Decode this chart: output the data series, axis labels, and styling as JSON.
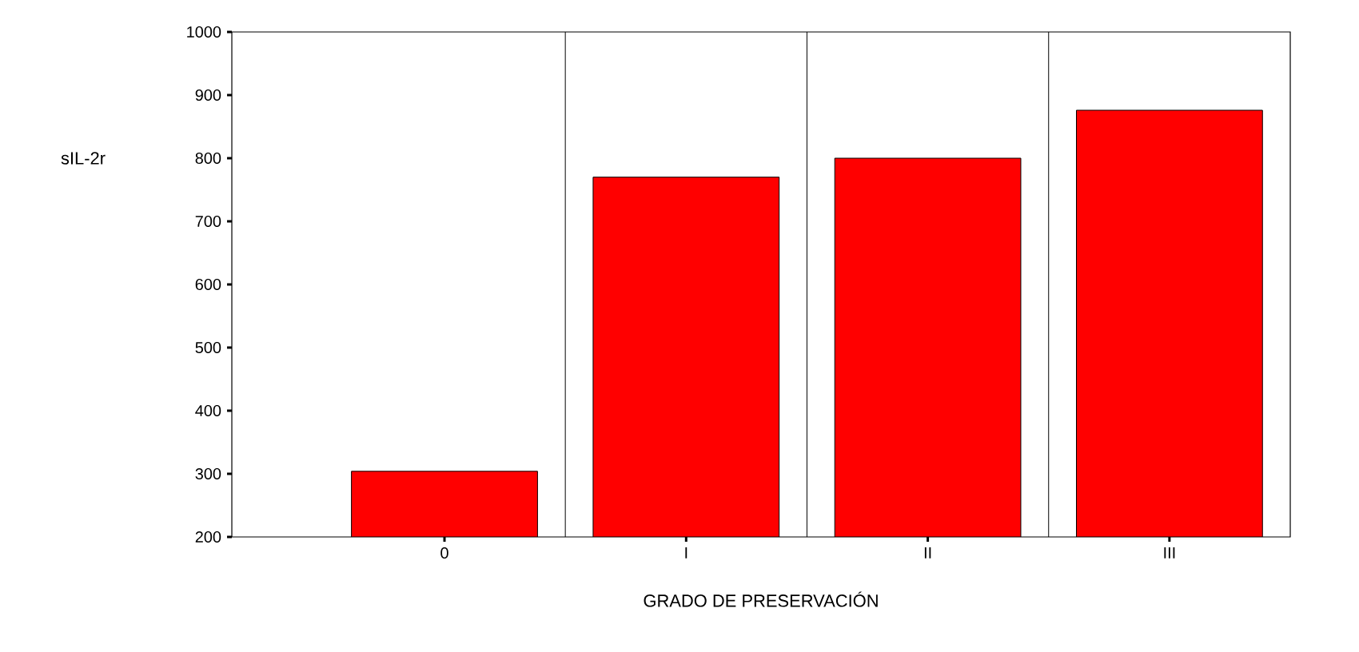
{
  "chart_data": {
    "type": "bar",
    "xlabel": "GRADO DE PRESERVACIÓN",
    "ylabel": "sIL-2r",
    "categories": [
      "0",
      "I",
      "II",
      "III"
    ],
    "values": [
      304,
      770,
      800,
      876
    ],
    "color": "#ff0000",
    "ylim": [
      200,
      1000
    ],
    "yticks": [
      200,
      300,
      400,
      500,
      600,
      700,
      800,
      900,
      1000
    ],
    "grid": "x"
  }
}
